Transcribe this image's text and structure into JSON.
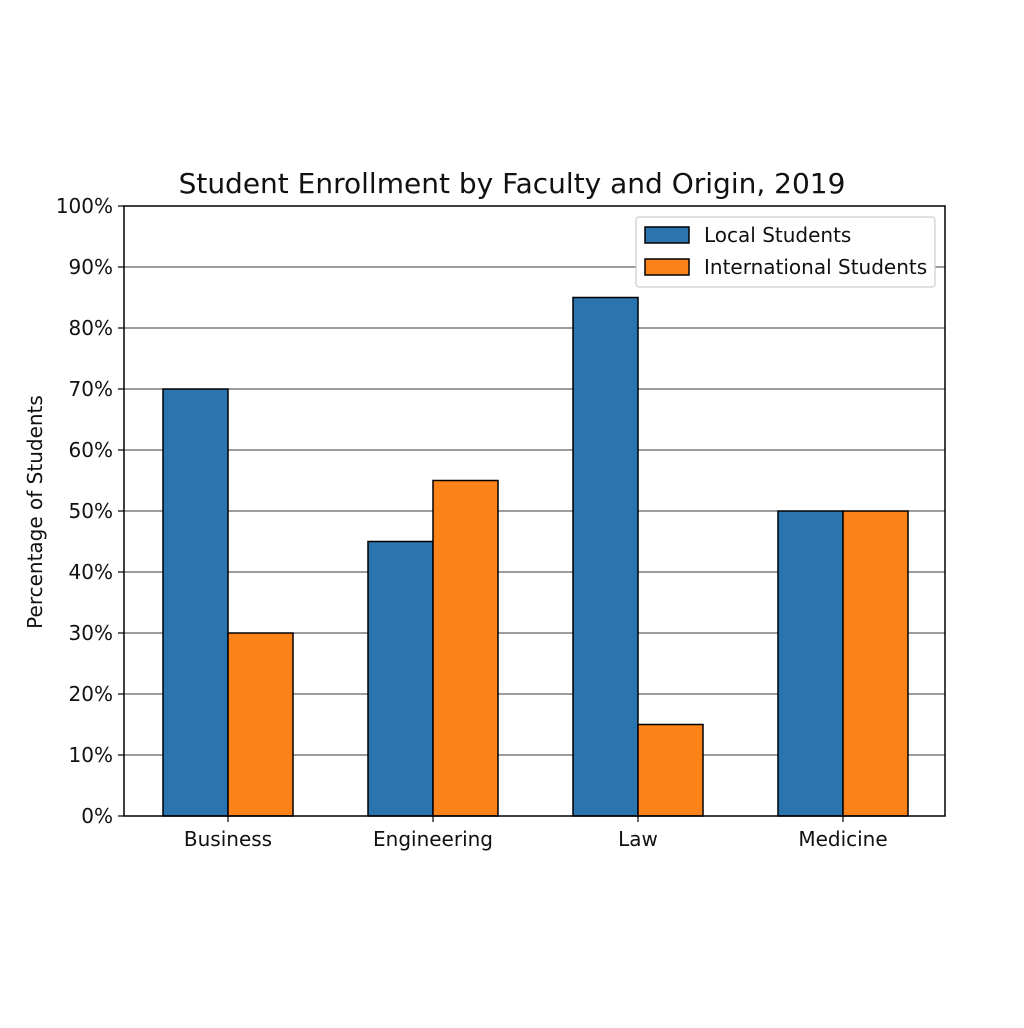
{
  "chart_data": {
    "type": "bar",
    "title": "Student Enrollment by Faculty and Origin, 2019",
    "xlabel": "",
    "ylabel": "Percentage of Students",
    "categories": [
      "Business",
      "Engineering",
      "Law",
      "Medicine"
    ],
    "series": [
      {
        "name": "Local Students",
        "color": "#2a74b0",
        "values": [
          70,
          45,
          85,
          50
        ]
      },
      {
        "name": "International Students",
        "color": "#fd8217",
        "values": [
          30,
          55,
          15,
          50
        ]
      }
    ],
    "ylim": [
      0,
      100
    ],
    "yticks": [
      0,
      10,
      20,
      30,
      40,
      50,
      60,
      70,
      80,
      90,
      100
    ],
    "ytick_suffix": "%",
    "grid": "horizontal",
    "legend_position": "top-right"
  }
}
